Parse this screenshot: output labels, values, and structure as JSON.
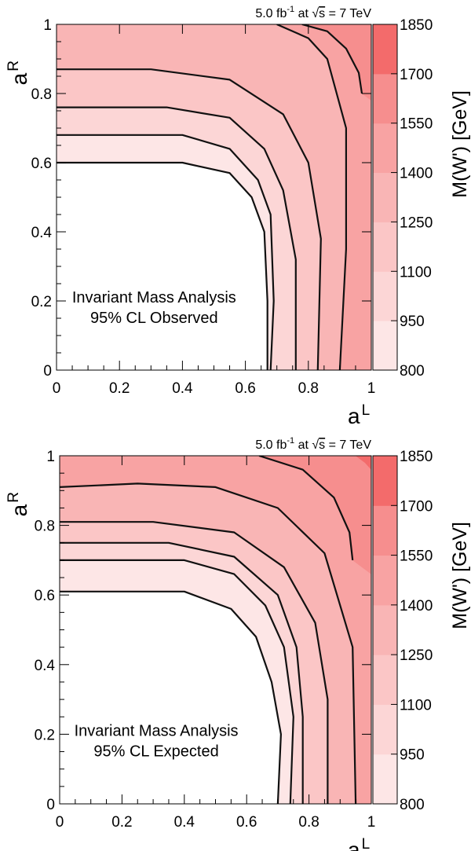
{
  "chart_data": [
    {
      "type": "heatmap",
      "header": {
        "lumi": "5.0 fb",
        "lumi_exp": "-1",
        "at": " at ",
        "sqrt_s": "s",
        "energy": " = 7 TeV"
      },
      "xlabel": "a",
      "xlabel_sup": "L",
      "ylabel": "a",
      "ylabel_sup": "R",
      "zlabel": "M(W') [GeV]",
      "xlim": [
        0,
        1
      ],
      "ylim": [
        0,
        1
      ],
      "xticks": [
        "0",
        "0.2",
        "0.4",
        "0.6",
        "0.8",
        "1"
      ],
      "yticks": [
        "0",
        "0.2",
        "0.4",
        "0.6",
        "0.8",
        "1"
      ],
      "zticks": [
        "800",
        "950",
        "1100",
        "1250",
        "1400",
        "1550",
        "1700",
        "1850"
      ],
      "zlim": [
        800,
        1850
      ],
      "colors": [
        "#fde6e6",
        "#fcd6d6",
        "#fbc6c6",
        "#f9b5b5",
        "#f8a3a3",
        "#f68e8e",
        "#f36b6b"
      ],
      "annotation": [
        "Invariant Mass Analysis",
        "95% CL Observed"
      ],
      "contours": [
        {
          "level": 950,
          "excluded_region": [
            [
              0,
              0.6
            ],
            [
              0.4,
              0.6
            ],
            [
              0.55,
              0.57
            ],
            [
              0.62,
              0.5
            ],
            [
              0.66,
              0.4
            ],
            [
              0.67,
              0.2
            ],
            [
              0.67,
              0
            ]
          ]
        },
        {
          "level": 1100,
          "points": [
            [
              0,
              0.68
            ],
            [
              0.4,
              0.68
            ],
            [
              0.55,
              0.64
            ],
            [
              0.64,
              0.55
            ],
            [
              0.68,
              0.45
            ],
            [
              0.69,
              0.2
            ],
            [
              0.68,
              0
            ]
          ]
        },
        {
          "level": 1250,
          "points": [
            [
              0,
              0.76
            ],
            [
              0.35,
              0.76
            ],
            [
              0.55,
              0.73
            ],
            [
              0.66,
              0.64
            ],
            [
              0.72,
              0.52
            ],
            [
              0.76,
              0.32
            ],
            [
              0.76,
              0
            ]
          ]
        },
        {
          "level": 1400,
          "points": [
            [
              0,
              0.87
            ],
            [
              0.3,
              0.87
            ],
            [
              0.55,
              0.84
            ],
            [
              0.72,
              0.74
            ],
            [
              0.8,
              0.6
            ],
            [
              0.84,
              0.38
            ],
            [
              0.83,
              0
            ]
          ]
        },
        {
          "level": 1550,
          "points": [
            [
              0.7,
              1
            ],
            [
              0.8,
              0.96
            ],
            [
              0.86,
              0.9
            ],
            [
              0.92,
              0.7
            ],
            [
              0.92,
              0.35
            ],
            [
              0.9,
              0
            ]
          ]
        },
        {
          "level": 1700,
          "points": [
            [
              0.78,
              1
            ],
            [
              0.86,
              0.98
            ],
            [
              0.92,
              0.93
            ],
            [
              0.96,
              0.86
            ],
            [
              0.97,
              0.8
            ]
          ]
        }
      ],
      "bands": [
        {
          "color_index": 0,
          "points": [
            [
              0,
              0.6
            ],
            [
              0.4,
              0.6
            ],
            [
              0.55,
              0.57
            ],
            [
              0.62,
              0.5
            ],
            [
              0.66,
              0.4
            ],
            [
              0.67,
              0.2
            ],
            [
              0.67,
              0
            ],
            [
              0.68,
              0
            ],
            [
              0.69,
              0.2
            ],
            [
              0.68,
              0.45
            ],
            [
              0.64,
              0.55
            ],
            [
              0.55,
              0.64
            ],
            [
              0.4,
              0.68
            ],
            [
              0,
              0.68
            ]
          ]
        },
        {
          "color_index": 1,
          "points": [
            [
              0,
              0.68
            ],
            [
              0.4,
              0.68
            ],
            [
              0.55,
              0.64
            ],
            [
              0.64,
              0.55
            ],
            [
              0.68,
              0.45
            ],
            [
              0.69,
              0.2
            ],
            [
              0.68,
              0
            ],
            [
              0.76,
              0
            ],
            [
              0.76,
              0.32
            ],
            [
              0.72,
              0.52
            ],
            [
              0.66,
              0.64
            ],
            [
              0.55,
              0.73
            ],
            [
              0.35,
              0.76
            ],
            [
              0,
              0.76
            ]
          ]
        },
        {
          "color_index": 2,
          "points": [
            [
              0,
              0.76
            ],
            [
              0.35,
              0.76
            ],
            [
              0.55,
              0.73
            ],
            [
              0.66,
              0.64
            ],
            [
              0.72,
              0.52
            ],
            [
              0.76,
              0.32
            ],
            [
              0.76,
              0
            ],
            [
              0.83,
              0
            ],
            [
              0.84,
              0.38
            ],
            [
              0.8,
              0.6
            ],
            [
              0.72,
              0.74
            ],
            [
              0.55,
              0.84
            ],
            [
              0.3,
              0.87
            ],
            [
              0,
              0.87
            ]
          ]
        },
        {
          "color_index": 3,
          "points": [
            [
              0,
              0.87
            ],
            [
              0.3,
              0.87
            ],
            [
              0.55,
              0.84
            ],
            [
              0.72,
              0.74
            ],
            [
              0.8,
              0.6
            ],
            [
              0.84,
              0.38
            ],
            [
              0.83,
              0
            ],
            [
              1,
              0
            ],
            [
              1,
              1
            ],
            [
              0,
              1
            ]
          ]
        },
        {
          "color_index": 4,
          "points": [
            [
              0.7,
              1
            ],
            [
              0.8,
              0.96
            ],
            [
              0.86,
              0.9
            ],
            [
              0.92,
              0.7
            ],
            [
              0.92,
              0.35
            ],
            [
              0.9,
              0
            ],
            [
              1,
              0
            ],
            [
              1,
              1
            ]
          ]
        },
        {
          "color_index": 5,
          "points": [
            [
              0.78,
              1
            ],
            [
              0.86,
              0.98
            ],
            [
              0.92,
              0.93
            ],
            [
              0.96,
              0.86
            ],
            [
              0.97,
              0.8
            ],
            [
              1,
              0.78
            ],
            [
              1,
              1
            ]
          ]
        }
      ]
    },
    {
      "type": "heatmap",
      "header": {
        "lumi": "5.0 fb",
        "lumi_exp": "-1",
        "at": " at ",
        "sqrt_s": "s",
        "energy": " = 7 TeV"
      },
      "xlabel": "a",
      "xlabel_sup": "L",
      "ylabel": "a",
      "ylabel_sup": "R",
      "zlabel": "M(W') [GeV]",
      "xlim": [
        0,
        1
      ],
      "ylim": [
        0,
        1
      ],
      "xticks": [
        "0",
        "0.2",
        "0.4",
        "0.6",
        "0.8",
        "1"
      ],
      "yticks": [
        "0",
        "0.2",
        "0.4",
        "0.6",
        "0.8",
        "1"
      ],
      "zticks": [
        "800",
        "950",
        "1100",
        "1250",
        "1400",
        "1550",
        "1700",
        "1850"
      ],
      "zlim": [
        800,
        1850
      ],
      "colors": [
        "#fde6e6",
        "#fcd6d6",
        "#fbc6c6",
        "#f9b5b5",
        "#f8a3a3",
        "#f68e8e",
        "#f36b6b"
      ],
      "annotation": [
        "Invariant Mass Analysis",
        "95% CL Expected"
      ],
      "contours": [
        {
          "level": 950,
          "excluded_region": [
            [
              0,
              0.61
            ],
            [
              0.4,
              0.61
            ],
            [
              0.55,
              0.56
            ],
            [
              0.63,
              0.48
            ],
            [
              0.68,
              0.35
            ],
            [
              0.71,
              0.2
            ],
            [
              0.7,
              0
            ]
          ]
        },
        {
          "level": 1100,
          "points": [
            [
              0,
              0.7
            ],
            [
              0.4,
              0.7
            ],
            [
              0.56,
              0.66
            ],
            [
              0.66,
              0.57
            ],
            [
              0.72,
              0.45
            ],
            [
              0.75,
              0.25
            ],
            [
              0.74,
              0
            ]
          ]
        },
        {
          "level": 1250,
          "points": [
            [
              0,
              0.75
            ],
            [
              0.35,
              0.75
            ],
            [
              0.56,
              0.71
            ],
            [
              0.7,
              0.6
            ],
            [
              0.76,
              0.45
            ],
            [
              0.78,
              0.25
            ],
            [
              0.78,
              0
            ]
          ]
        },
        {
          "level": 1400,
          "points": [
            [
              0,
              0.81
            ],
            [
              0.3,
              0.81
            ],
            [
              0.56,
              0.78
            ],
            [
              0.72,
              0.68
            ],
            [
              0.82,
              0.52
            ],
            [
              0.86,
              0.3
            ],
            [
              0.86,
              0
            ]
          ]
        },
        {
          "level": 1550,
          "points": [
            [
              0,
              0.91
            ],
            [
              0.25,
              0.92
            ],
            [
              0.5,
              0.91
            ],
            [
              0.7,
              0.85
            ],
            [
              0.85,
              0.72
            ],
            [
              0.94,
              0.45
            ],
            [
              0.95,
              0
            ]
          ]
        },
        {
          "level": 1700,
          "points": [
            [
              0.64,
              1
            ],
            [
              0.78,
              0.96
            ],
            [
              0.88,
              0.88
            ],
            [
              0.93,
              0.78
            ],
            [
              0.94,
              0.7
            ]
          ]
        }
      ],
      "bands": [
        {
          "color_index": 0,
          "points": [
            [
              0,
              0.61
            ],
            [
              0.4,
              0.61
            ],
            [
              0.55,
              0.56
            ],
            [
              0.63,
              0.48
            ],
            [
              0.68,
              0.35
            ],
            [
              0.71,
              0.2
            ],
            [
              0.7,
              0
            ],
            [
              0.74,
              0
            ],
            [
              0.75,
              0.25
            ],
            [
              0.72,
              0.45
            ],
            [
              0.66,
              0.57
            ],
            [
              0.56,
              0.66
            ],
            [
              0.4,
              0.7
            ],
            [
              0,
              0.7
            ]
          ]
        },
        {
          "color_index": 1,
          "points": [
            [
              0,
              0.7
            ],
            [
              0.4,
              0.7
            ],
            [
              0.56,
              0.66
            ],
            [
              0.66,
              0.57
            ],
            [
              0.72,
              0.45
            ],
            [
              0.75,
              0.25
            ],
            [
              0.74,
              0
            ],
            [
              0.78,
              0
            ],
            [
              0.78,
              0.25
            ],
            [
              0.76,
              0.45
            ],
            [
              0.7,
              0.6
            ],
            [
              0.56,
              0.71
            ],
            [
              0.35,
              0.75
            ],
            [
              0,
              0.75
            ]
          ]
        },
        {
          "color_index": 2,
          "points": [
            [
              0,
              0.75
            ],
            [
              0.35,
              0.75
            ],
            [
              0.56,
              0.71
            ],
            [
              0.7,
              0.6
            ],
            [
              0.76,
              0.45
            ],
            [
              0.78,
              0.25
            ],
            [
              0.78,
              0
            ],
            [
              0.86,
              0
            ],
            [
              0.86,
              0.3
            ],
            [
              0.82,
              0.52
            ],
            [
              0.72,
              0.68
            ],
            [
              0.56,
              0.78
            ],
            [
              0.3,
              0.81
            ],
            [
              0,
              0.81
            ]
          ]
        },
        {
          "color_index": 3,
          "points": [
            [
              0,
              0.81
            ],
            [
              0.3,
              0.81
            ],
            [
              0.56,
              0.78
            ],
            [
              0.72,
              0.68
            ],
            [
              0.82,
              0.52
            ],
            [
              0.86,
              0.3
            ],
            [
              0.86,
              0
            ],
            [
              0.95,
              0
            ],
            [
              0.94,
              0.45
            ],
            [
              0.85,
              0.72
            ],
            [
              0.7,
              0.85
            ],
            [
              0.5,
              0.91
            ],
            [
              0.25,
              0.92
            ],
            [
              0,
              0.91
            ]
          ]
        },
        {
          "color_index": 4,
          "points": [
            [
              0,
              0.91
            ],
            [
              0.25,
              0.92
            ],
            [
              0.5,
              0.91
            ],
            [
              0.7,
              0.85
            ],
            [
              0.85,
              0.72
            ],
            [
              0.94,
              0.45
            ],
            [
              0.95,
              0
            ],
            [
              1,
              0
            ],
            [
              1,
              1
            ],
            [
              0,
              1
            ]
          ]
        },
        {
          "color_index": 5,
          "points": [
            [
              0.64,
              1
            ],
            [
              0.78,
              0.96
            ],
            [
              0.88,
              0.88
            ],
            [
              0.93,
              0.78
            ],
            [
              0.94,
              0.7
            ],
            [
              1,
              0.66
            ],
            [
              1,
              1
            ]
          ]
        },
        {
          "color_index": 6,
          "points": [
            [
              0.95,
              1
            ],
            [
              0.98,
              0.98
            ],
            [
              1,
              0.96
            ],
            [
              1,
              1
            ]
          ]
        }
      ]
    }
  ]
}
